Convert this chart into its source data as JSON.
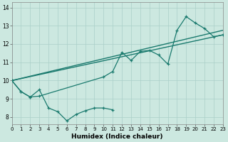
{
  "xlabel": "Humidex (Indice chaleur)",
  "color": "#1a7a6e",
  "bg_color": "#cce8e0",
  "grid_color": "#aacfc8",
  "xlim": [
    0,
    23
  ],
  "ylim": [
    7.6,
    14.3
  ],
  "yticks": [
    8,
    9,
    10,
    11,
    12,
    13,
    14
  ],
  "xticks": [
    0,
    1,
    2,
    3,
    4,
    5,
    6,
    7,
    8,
    9,
    10,
    11,
    12,
    13,
    14,
    15,
    16,
    17,
    18,
    19,
    20,
    21,
    22,
    23
  ],
  "trend1_x": [
    0,
    23
  ],
  "trend1_y": [
    10.0,
    12.5
  ],
  "trend2_x": [
    0,
    23
  ],
  "trend2_y": [
    10.0,
    12.75
  ],
  "line1_x": [
    0,
    1,
    2,
    3,
    4,
    5,
    6,
    7,
    8,
    9,
    10,
    11
  ],
  "line1_y": [
    10.0,
    9.4,
    9.1,
    9.5,
    8.5,
    8.3,
    7.8,
    8.15,
    8.35,
    8.5,
    8.5,
    8.4
  ],
  "line2_x": [
    0,
    1,
    2,
    3,
    10,
    11,
    12,
    13,
    14,
    15,
    16,
    17,
    18,
    19,
    20,
    21,
    22,
    23
  ],
  "line2_y": [
    10.0,
    9.4,
    9.1,
    9.15,
    10.2,
    10.5,
    11.55,
    11.1,
    11.6,
    11.65,
    11.4,
    10.9,
    12.75,
    13.5,
    13.15,
    12.85,
    12.4,
    12.5
  ]
}
